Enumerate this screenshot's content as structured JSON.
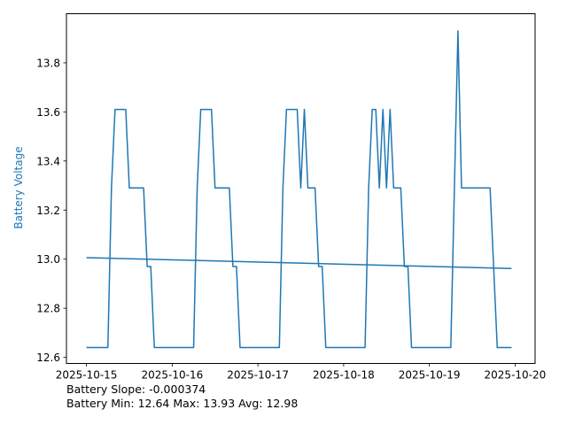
{
  "chart_data": {
    "type": "line",
    "title": "",
    "xlabel": "",
    "ylabel": "Battery Voltage",
    "x_tick_labels": [
      "2025-10-15",
      "2025-10-16",
      "2025-10-17",
      "2025-10-18",
      "2025-10-19",
      "2025-10-20"
    ],
    "y_tick_labels": [
      "12.6",
      "12.8",
      "13.0",
      "13.2",
      "13.4",
      "13.6",
      "13.8"
    ],
    "xlim": [
      "2025-10-14 18:24",
      "2025-10-20 05:36"
    ],
    "ylim": [
      12.575,
      14.0
    ],
    "grid": false,
    "legend": "none",
    "colors": {
      "series": "#1f77b4",
      "ylabel": "#1f77b4",
      "axes": "#000000"
    },
    "series": [
      {
        "points": [
          [
            "2025-10-15 00:00",
            12.64
          ],
          [
            "2025-10-15 06:00",
            12.64
          ],
          [
            "2025-10-15 07:00",
            13.29
          ],
          [
            "2025-10-15 08:00",
            13.61
          ],
          [
            "2025-10-15 11:00",
            13.61
          ],
          [
            "2025-10-15 12:00",
            13.29
          ],
          [
            "2025-10-15 16:00",
            13.29
          ],
          [
            "2025-10-15 17:00",
            12.97
          ],
          [
            "2025-10-15 18:00",
            12.97
          ],
          [
            "2025-10-15 19:00",
            12.64
          ],
          [
            "2025-10-16 06:00",
            12.64
          ],
          [
            "2025-10-16 07:00",
            13.29
          ],
          [
            "2025-10-16 08:00",
            13.61
          ],
          [
            "2025-10-16 11:00",
            13.61
          ],
          [
            "2025-10-16 12:00",
            13.29
          ],
          [
            "2025-10-16 16:00",
            13.29
          ],
          [
            "2025-10-16 17:00",
            12.97
          ],
          [
            "2025-10-16 18:00",
            12.97
          ],
          [
            "2025-10-16 19:00",
            12.64
          ],
          [
            "2025-10-17 06:00",
            12.64
          ],
          [
            "2025-10-17 07:00",
            13.29
          ],
          [
            "2025-10-17 08:00",
            13.61
          ],
          [
            "2025-10-17 11:00",
            13.61
          ],
          [
            "2025-10-17 12:00",
            13.29
          ],
          [
            "2025-10-17 13:00",
            13.61
          ],
          [
            "2025-10-17 14:00",
            13.29
          ],
          [
            "2025-10-17 16:00",
            13.29
          ],
          [
            "2025-10-17 17:00",
            12.97
          ],
          [
            "2025-10-17 18:00",
            12.97
          ],
          [
            "2025-10-17 19:00",
            12.64
          ],
          [
            "2025-10-18 06:00",
            12.64
          ],
          [
            "2025-10-18 07:00",
            13.29
          ],
          [
            "2025-10-18 08:00",
            13.61
          ],
          [
            "2025-10-18 09:00",
            13.61
          ],
          [
            "2025-10-18 10:00",
            13.29
          ],
          [
            "2025-10-18 11:00",
            13.61
          ],
          [
            "2025-10-18 12:00",
            13.29
          ],
          [
            "2025-10-18 13:00",
            13.61
          ],
          [
            "2025-10-18 14:00",
            13.29
          ],
          [
            "2025-10-18 16:00",
            13.29
          ],
          [
            "2025-10-18 17:00",
            12.97
          ],
          [
            "2025-10-18 18:00",
            12.97
          ],
          [
            "2025-10-18 19:00",
            12.64
          ],
          [
            "2025-10-19 06:00",
            12.64
          ],
          [
            "2025-10-19 08:00",
            13.93
          ],
          [
            "2025-10-19 09:00",
            13.29
          ],
          [
            "2025-10-19 17:00",
            13.29
          ],
          [
            "2025-10-19 19:00",
            12.64
          ],
          [
            "2025-10-19 23:00",
            12.64
          ]
        ]
      },
      {
        "points": [
          [
            "2025-10-15 00:00",
            13.006
          ],
          [
            "2025-10-19 23:00",
            12.962
          ]
        ]
      }
    ]
  },
  "stats": {
    "slope_line": "Battery Slope: -0.000374",
    "summary_line": "Battery Min: 12.64 Max: 13.93 Avg: 12.98"
  }
}
